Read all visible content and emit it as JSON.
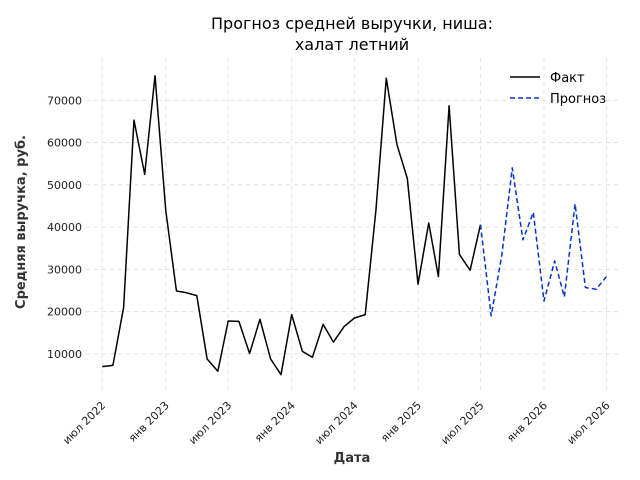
{
  "chart_data": {
    "type": "line",
    "title_lines": [
      "Прогноз средней выручки, ниша:",
      "халат летний"
    ],
    "xlabel": "Дата",
    "ylabel": "Средняя выручка, руб.",
    "x_tick_labels": [
      {
        "date": "2022-07-01",
        "label": "июл 2022"
      },
      {
        "date": "2023-01-01",
        "label": "янв 2023"
      },
      {
        "date": "2023-07-01",
        "label": "июл 2023"
      },
      {
        "date": "2024-01-01",
        "label": "янв 2024"
      },
      {
        "date": "2024-07-01",
        "label": "июл 2024"
      },
      {
        "date": "2025-01-01",
        "label": "янв 2025"
      },
      {
        "date": "2025-07-01",
        "label": "июл 2025"
      },
      {
        "date": "2026-01-01",
        "label": "янв 2026"
      },
      {
        "date": "2026-07-01",
        "label": "июл 2026"
      }
    ],
    "y_ticks": [
      10000,
      20000,
      30000,
      40000,
      50000,
      60000,
      70000
    ],
    "xlim": [
      "2022-05-15",
      "2026-08-15"
    ],
    "ylim": [
      1000,
      80000
    ],
    "grid": true,
    "legend_position": "top-right",
    "series": [
      {
        "name": "Факт",
        "color": "#000000",
        "style": "solid",
        "points": [
          [
            "2022-07-01",
            7000
          ],
          [
            "2022-08-01",
            7300
          ],
          [
            "2022-09-01",
            21000
          ],
          [
            "2022-10-01",
            65300
          ],
          [
            "2022-11-01",
            52500
          ],
          [
            "2022-12-01",
            75800
          ],
          [
            "2023-01-01",
            44000
          ],
          [
            "2023-02-01",
            24900
          ],
          [
            "2023-03-01",
            24500
          ],
          [
            "2023-04-01",
            23800
          ],
          [
            "2023-05-01",
            8800
          ],
          [
            "2023-06-01",
            5900
          ],
          [
            "2023-07-01",
            17800
          ],
          [
            "2023-08-01",
            17700
          ],
          [
            "2023-09-01",
            10100
          ],
          [
            "2023-10-01",
            18200
          ],
          [
            "2023-11-01",
            8800
          ],
          [
            "2023-12-01",
            5100
          ],
          [
            "2024-01-01",
            19300
          ],
          [
            "2024-02-01",
            10600
          ],
          [
            "2024-03-01",
            9200
          ],
          [
            "2024-04-01",
            17000
          ],
          [
            "2024-05-01",
            12800
          ],
          [
            "2024-06-01",
            16500
          ],
          [
            "2024-07-01",
            18500
          ],
          [
            "2024-08-01",
            19300
          ],
          [
            "2024-09-01",
            44000
          ],
          [
            "2024-10-01",
            75200
          ],
          [
            "2024-11-01",
            59500
          ],
          [
            "2024-12-01",
            51500
          ],
          [
            "2025-01-01",
            26500
          ],
          [
            "2025-02-01",
            41000
          ],
          [
            "2025-03-01",
            28300
          ],
          [
            "2025-04-01",
            68700
          ],
          [
            "2025-05-01",
            33500
          ],
          [
            "2025-06-01",
            29800
          ],
          [
            "2025-07-01",
            40600
          ]
        ]
      },
      {
        "name": "Прогноз",
        "color": "#0033cc",
        "style": "dashed",
        "points": [
          [
            "2025-07-01",
            40600
          ],
          [
            "2025-08-01",
            19000
          ],
          [
            "2025-09-01",
            33500
          ],
          [
            "2025-10-01",
            54000
          ],
          [
            "2025-11-01",
            37000
          ],
          [
            "2025-12-01",
            43500
          ],
          [
            "2026-01-01",
            22500
          ],
          [
            "2026-02-01",
            32000
          ],
          [
            "2026-03-01",
            23500
          ],
          [
            "2026-04-01",
            45500
          ],
          [
            "2026-05-01",
            25700
          ],
          [
            "2026-06-01",
            25300
          ],
          [
            "2026-07-01",
            28300
          ]
        ]
      }
    ]
  }
}
